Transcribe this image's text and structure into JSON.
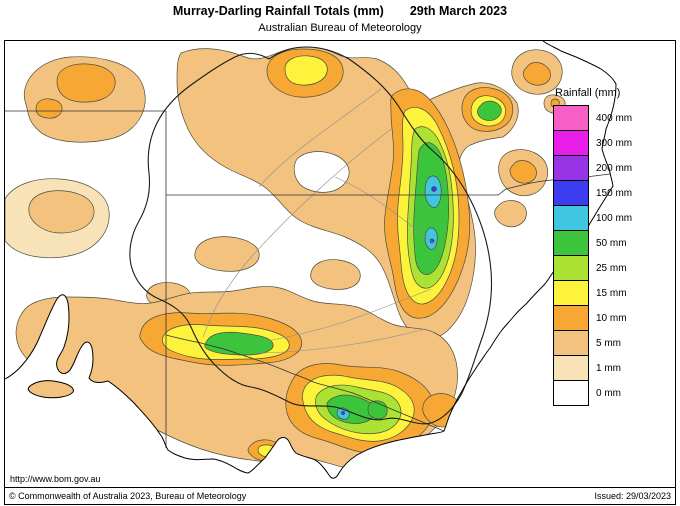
{
  "header": {
    "title": "Murray-Darling Rainfall Totals (mm)",
    "date": "29th March 2023",
    "subtitle": "Australian Bureau of Meteorology"
  },
  "legend": {
    "title": "Rainfall (mm)",
    "entries": [
      {
        "label": "400 mm",
        "color": "#f75fc6"
      },
      {
        "label": "300 mm",
        "color": "#e91ee9"
      },
      {
        "label": "200 mm",
        "color": "#9933e6"
      },
      {
        "label": "150 mm",
        "color": "#3c3cf0"
      },
      {
        "label": "100 mm",
        "color": "#3fc6e0"
      },
      {
        "label": "50 mm",
        "color": "#3cc53c"
      },
      {
        "label": "25 mm",
        "color": "#abe234"
      },
      {
        "label": "15 mm",
        "color": "#fdf23c"
      },
      {
        "label": "10 mm",
        "color": "#f7a733"
      },
      {
        "label": "5 mm",
        "color": "#f2c27e"
      },
      {
        "label": "1 mm",
        "color": "#f8e3b8"
      },
      {
        "label": "0 mm",
        "color": "#ffffff"
      }
    ]
  },
  "footer": {
    "url": "http://www.bom.gov.au",
    "copyright": "© Commonwealth of Australia 2023, Bureau of Meteorology",
    "issued": "Issued: 29/03/2023"
  }
}
